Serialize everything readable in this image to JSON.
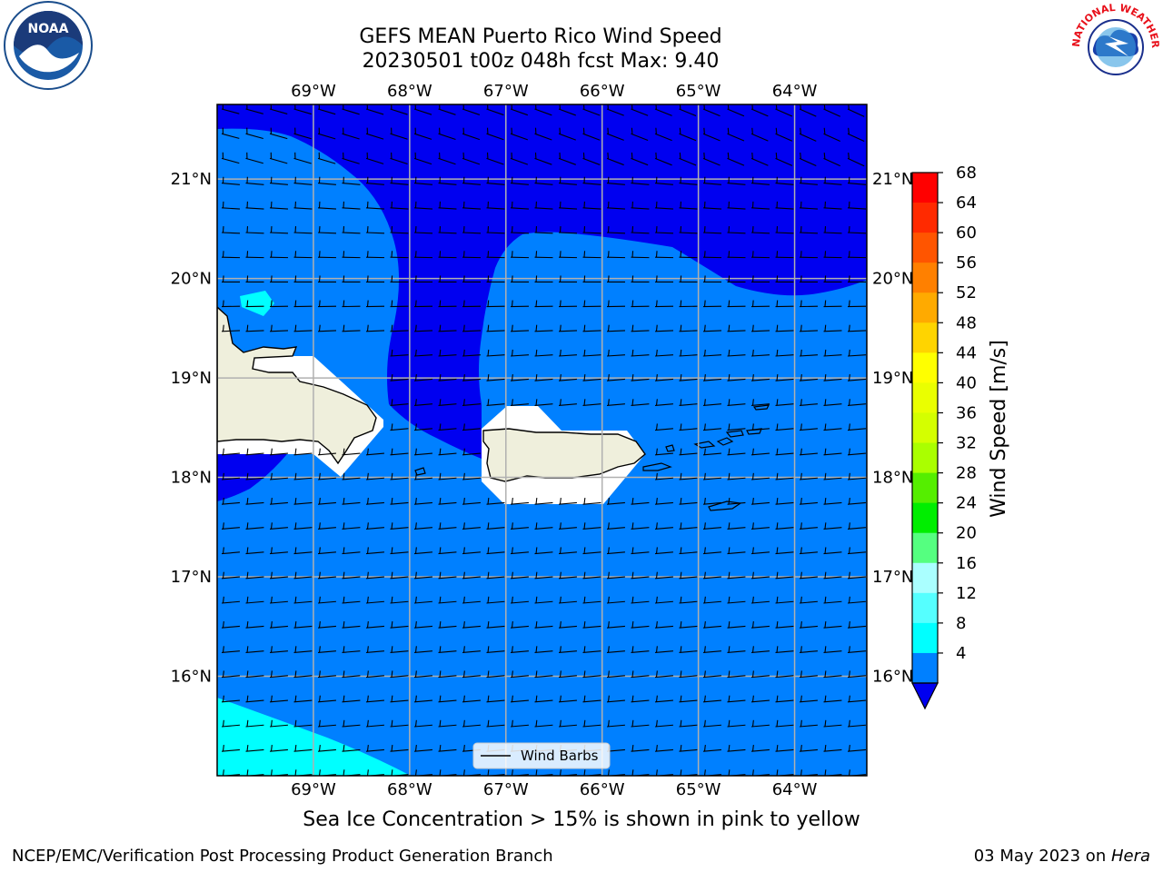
{
  "header": {
    "title_line1": "GEFS MEAN Puerto Rico Wind Speed",
    "title_line2": "20230501 t00z 048h fcst   Max: 9.40"
  },
  "map": {
    "lon_labels": [
      "69°W",
      "68°W",
      "67°W",
      "66°W",
      "65°W",
      "64°W"
    ],
    "lat_labels": [
      "21°N",
      "20°N",
      "19°N",
      "18°N",
      "17°N",
      "16°N"
    ],
    "lon_values": [
      -69,
      -68,
      -67,
      -66,
      -65,
      -64
    ],
    "lat_values": [
      21,
      20,
      19,
      18,
      17,
      16
    ],
    "extent": {
      "lon_min": -70.0,
      "lon_max": -63.25,
      "lat_min": 15.0,
      "lat_max": 21.75
    },
    "legend_label": "Wind Barbs",
    "colors": {
      "speed_lt4": "#0000f0",
      "speed_4_8": "#0080ff",
      "speed_8_12": "#00ffff",
      "land": "#efefdc",
      "mask": "#ffffff"
    }
  },
  "colorbar": {
    "label": "Wind Speed [m/s]",
    "ticks": [
      "68",
      "64",
      "60",
      "56",
      "52",
      "48",
      "44",
      "40",
      "36",
      "32",
      "28",
      "24",
      "20",
      "16",
      "12",
      "8",
      "4"
    ],
    "colors": [
      "#ff0000",
      "#ff2a00",
      "#ff5500",
      "#ff8000",
      "#ffaa00",
      "#ffd400",
      "#ffff00",
      "#eaff00",
      "#d4ff00",
      "#aaff00",
      "#55ee00",
      "#00ee00",
      "#55ff80",
      "#aaffff",
      "#55ffff",
      "#00ffff",
      "#0080ff"
    ],
    "under_color": "#0000f0"
  },
  "subtitle": "Sea Ice Concentration > 15% is shown in pink to yellow",
  "footer": {
    "left": "NCEP/EMC/Verification Post Processing Product Generation Branch",
    "right_date": "03 May 2023 on ",
    "right_machine": "Hera"
  },
  "logos": {
    "noaa_text": "NOAA",
    "nws_text": "NATIONAL WEATHER SERVICE"
  }
}
